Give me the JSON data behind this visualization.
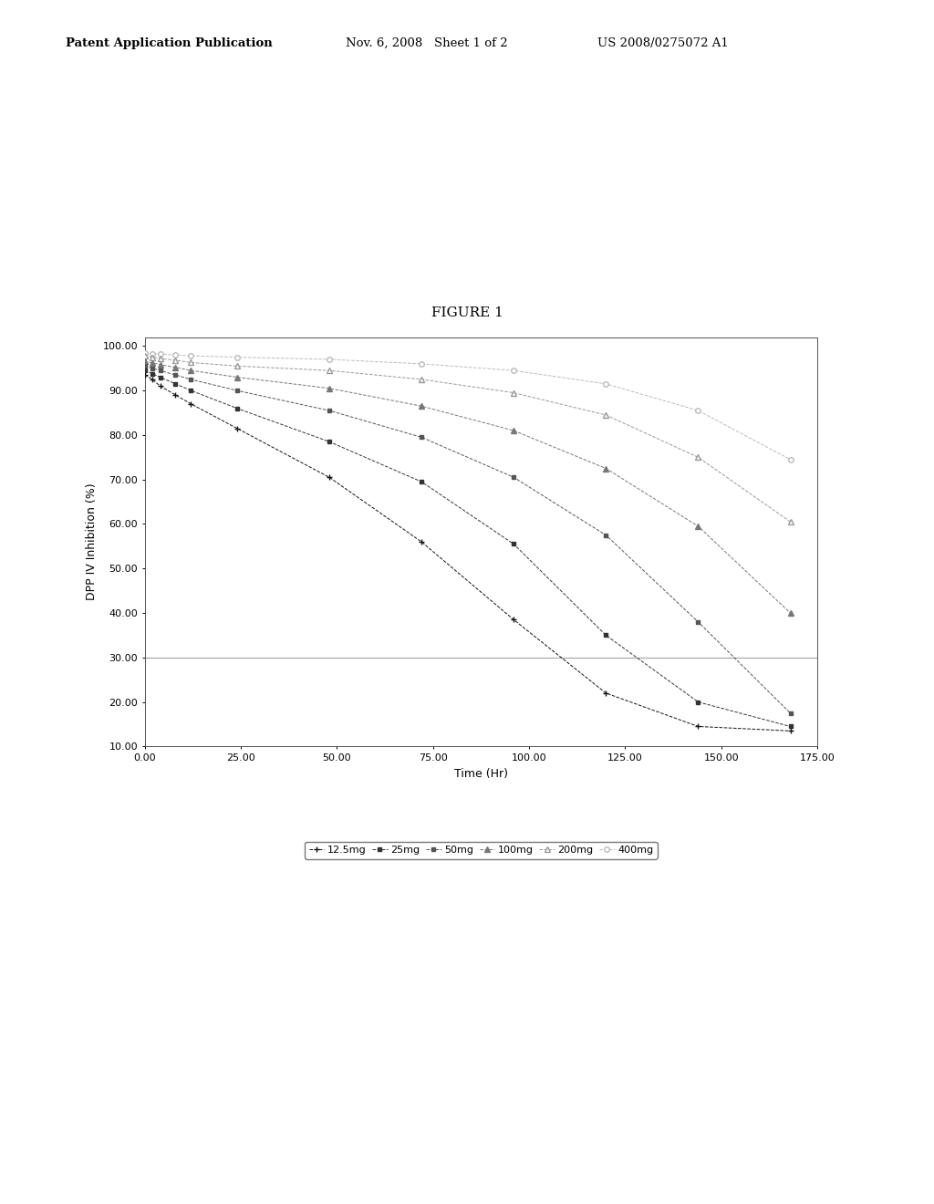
{
  "title": "FIGURE 1",
  "xlabel": "Time (Hr)",
  "ylabel": "DPP IV Inhibition (%)",
  "xlim": [
    0,
    175
  ],
  "ylim": [
    10,
    102
  ],
  "yticks": [
    10.0,
    20.0,
    30.0,
    40.0,
    50.0,
    60.0,
    70.0,
    80.0,
    90.0,
    100.0
  ],
  "xticks": [
    0.0,
    25.0,
    50.0,
    75.0,
    100.0,
    125.0,
    150.0,
    175.0
  ],
  "hline_y": 30.0,
  "hline_color": "#aaaaaa",
  "series": {
    "400mg": {
      "x": [
        0,
        2,
        4,
        8,
        12,
        24,
        48,
        72,
        96,
        120,
        144,
        168
      ],
      "y": [
        98.5,
        98.3,
        98.2,
        98.0,
        97.8,
        97.5,
        97.0,
        96.0,
        94.5,
        91.5,
        85.5,
        74.5
      ],
      "color": "#bbbbbb",
      "marker": "o",
      "mfc": "white",
      "ms": 4
    },
    "200mg": {
      "x": [
        0,
        2,
        4,
        8,
        12,
        24,
        48,
        72,
        96,
        120,
        144,
        168
      ],
      "y": [
        97.8,
        97.5,
        97.2,
        96.8,
        96.3,
        95.5,
        94.5,
        92.5,
        89.5,
        84.5,
        75.0,
        60.5
      ],
      "color": "#999999",
      "marker": "^",
      "mfc": "white",
      "ms": 4
    },
    "100mg": {
      "x": [
        0,
        2,
        4,
        8,
        12,
        24,
        48,
        72,
        96,
        120,
        144,
        168
      ],
      "y": [
        96.5,
        96.2,
        95.8,
        95.2,
        94.5,
        93.0,
        90.5,
        86.5,
        81.0,
        72.5,
        59.5,
        40.0
      ],
      "color": "#777777",
      "marker": "^",
      "mfc": "#777777",
      "ms": 4
    },
    "50mg": {
      "x": [
        0,
        2,
        4,
        8,
        12,
        24,
        48,
        72,
        96,
        120,
        144,
        168
      ],
      "y": [
        95.5,
        95.0,
        94.5,
        93.5,
        92.5,
        90.0,
        85.5,
        79.5,
        70.5,
        57.5,
        38.0,
        17.5
      ],
      "color": "#555555",
      "marker": "s",
      "mfc": "#555555",
      "ms": 4
    },
    "25mg": {
      "x": [
        0,
        2,
        4,
        8,
        12,
        24,
        48,
        72,
        96,
        120,
        144,
        168
      ],
      "y": [
        94.5,
        93.8,
        93.0,
        91.5,
        90.0,
        86.0,
        78.5,
        69.5,
        55.5,
        35.0,
        20.0,
        14.5
      ],
      "color": "#333333",
      "marker": "s",
      "mfc": "#333333",
      "ms": 3
    },
    "12.5mg": {
      "x": [
        0,
        2,
        4,
        8,
        12,
        24,
        48,
        72,
        96,
        120,
        144,
        168
      ],
      "y": [
        93.5,
        92.5,
        91.0,
        89.0,
        87.0,
        81.5,
        70.5,
        56.0,
        38.5,
        22.0,
        14.5,
        13.5
      ],
      "color": "#111111",
      "marker": "+",
      "mfc": "#111111",
      "ms": 5
    }
  },
  "legend_order": [
    "12.5mg",
    "25mg",
    "50mg",
    "100mg",
    "200mg",
    "400mg"
  ],
  "background_color": "#ffffff"
}
